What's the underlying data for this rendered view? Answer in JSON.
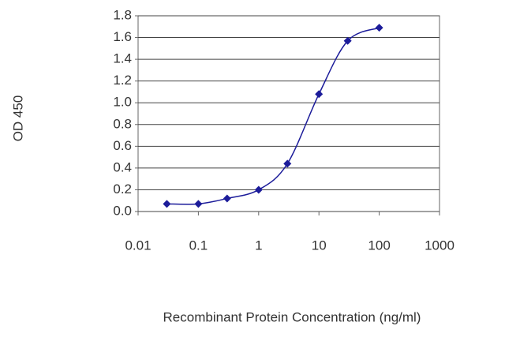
{
  "chart_data": {
    "type": "line",
    "x_label": "Recombinant Protein Concentration (ng/ml)",
    "y_label": "OD 450",
    "x": [
      0.03,
      0.1,
      0.3,
      1,
      3,
      10,
      30,
      100
    ],
    "values": [
      0.07,
      0.07,
      0.12,
      0.2,
      0.44,
      1.08,
      1.57,
      1.69
    ],
    "color": "#1c1c9a",
    "xscale": "log",
    "xlim": [
      0.01,
      1000
    ],
    "xticks": [
      0.01,
      0.1,
      1,
      10,
      100,
      1000
    ],
    "ylim": [
      0,
      1.8
    ],
    "yticks": [
      {
        "value": 0,
        "label": "0.0"
      },
      0.2,
      0.4,
      0.6,
      0.8,
      {
        "value": 1,
        "label": "1.0"
      },
      1.2,
      1.4,
      1.6,
      1.8
    ],
    "grid": true
  }
}
